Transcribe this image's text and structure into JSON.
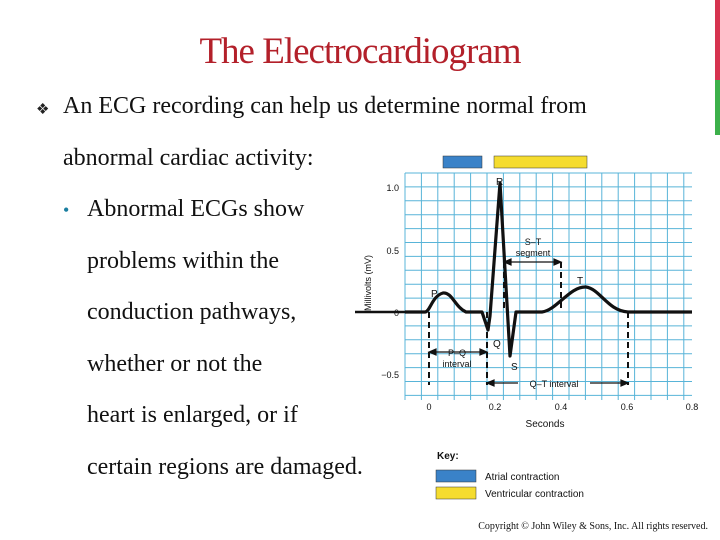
{
  "slide": {
    "title": "The Electrocardiogram",
    "bullet_icon": "diamond-arrow-bullet-icon",
    "bullet_line1": "An ECG recording can help us determine normal from",
    "bullet_line2": "abnormal cardiac activity:",
    "sub_bullet_icon": "round-bullet-icon",
    "sub_lines": [
      "Abnormal ECGs show",
      "problems within the",
      "conduction pathways,",
      "whether or not the",
      "heart is enlarged, or if",
      "certain regions are damaged."
    ],
    "copyright": "Copyright © John Wiley & Sons, Inc. All rights reserved."
  },
  "chart": {
    "ylabel": "Millivolts (mV)",
    "xlabel": "Seconds",
    "y_ticks": [
      "1.0",
      "0.5",
      "0",
      "−0.5"
    ],
    "x_ticks": [
      "0",
      "0.2",
      "0.4",
      "0.6",
      "0.8"
    ],
    "waves": [
      "P",
      "Q",
      "R",
      "S",
      "T"
    ],
    "st_segment": [
      "S–T",
      "segment"
    ],
    "pq_interval": [
      "P–Q",
      "interval"
    ],
    "qt_interval": "Q–T interval",
    "key_title": "Key:",
    "key_items": [
      {
        "label": "Atrial contraction",
        "color": "#3a82c8"
      },
      {
        "label": "Ventricular contraction",
        "color": "#f5dc2f"
      }
    ]
  },
  "colors": {
    "title": "#b3202a",
    "grid": "#58b4d8",
    "trace": "#111111",
    "edge_red": "#d6334f",
    "edge_green": "#3cb04a"
  }
}
